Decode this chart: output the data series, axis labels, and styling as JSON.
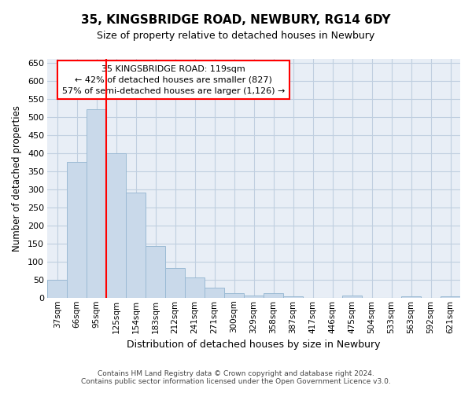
{
  "title": "35, KINGSBRIDGE ROAD, NEWBURY, RG14 6DY",
  "subtitle": "Size of property relative to detached houses in Newbury",
  "xlabel": "Distribution of detached houses by size in Newbury",
  "ylabel": "Number of detached properties",
  "footer_line1": "Contains HM Land Registry data © Crown copyright and database right 2024.",
  "footer_line2": "Contains public sector information licensed under the Open Government Licence v3.0.",
  "categories": [
    "37sqm",
    "66sqm",
    "95sqm",
    "125sqm",
    "154sqm",
    "183sqm",
    "212sqm",
    "241sqm",
    "271sqm",
    "300sqm",
    "329sqm",
    "358sqm",
    "387sqm",
    "417sqm",
    "446sqm",
    "475sqm",
    "504sqm",
    "533sqm",
    "563sqm",
    "592sqm",
    "621sqm"
  ],
  "bar_values": [
    50,
    375,
    520,
    400,
    290,
    143,
    82,
    55,
    28,
    12,
    5,
    12,
    4,
    0,
    0,
    5,
    0,
    0,
    4,
    0,
    3
  ],
  "bar_color": "#c9d9ea",
  "bar_edge_color": "#9bbad4",
  "grid_color": "#c0cfe0",
  "background_color": "#e8eef6",
  "red_line_x": 3.0,
  "annotation_box_text_line1": "35 KINGSBRIDGE ROAD: 119sqm",
  "annotation_box_text_line2": "← 42% of detached houses are smaller (827)",
  "annotation_box_text_line3": "57% of semi-detached houses are larger (1,126) →",
  "annotation_box_color": "white",
  "annotation_box_edge_color": "red",
  "ylim": [
    0,
    660
  ],
  "yticks": [
    0,
    50,
    100,
    150,
    200,
    250,
    300,
    350,
    400,
    450,
    500,
    550,
    600,
    650
  ]
}
